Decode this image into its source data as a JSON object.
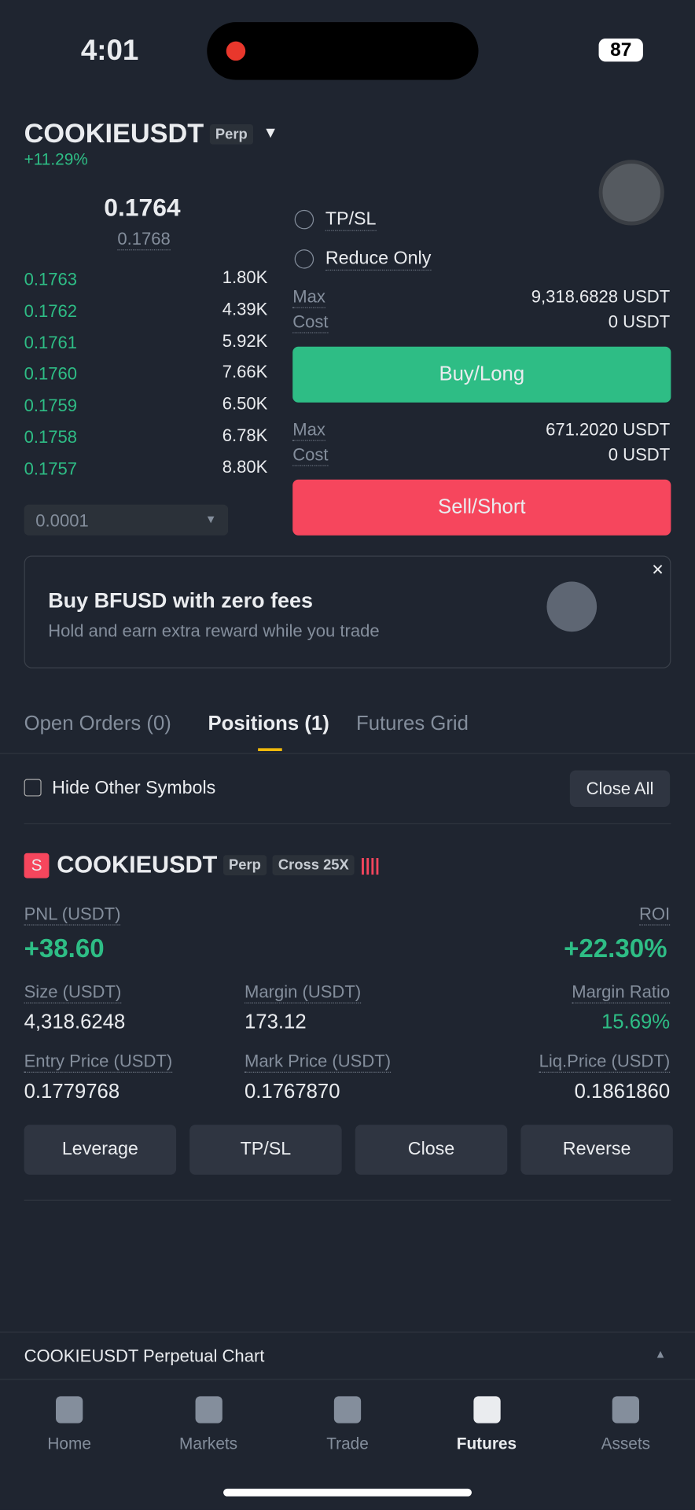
{
  "status": {
    "time": "4:01",
    "battery": "87"
  },
  "header": {
    "symbol": "COOKIEUSDT",
    "tag": "Perp",
    "change": "+11.29%"
  },
  "orderbook": {
    "last_price": "0.1764",
    "mark_price": "0.1768",
    "bids": [
      [
        "0.1763",
        "1.80K"
      ],
      [
        "0.1762",
        "4.39K"
      ],
      [
        "0.1761",
        "5.92K"
      ],
      [
        "0.1760",
        "7.66K"
      ],
      [
        "0.1759",
        "6.50K"
      ],
      [
        "0.1758",
        "6.78K"
      ],
      [
        "0.1757",
        "8.80K"
      ]
    ],
    "step": "0.0001"
  },
  "order_form": {
    "options": [
      "TP/SL",
      "Reduce Only"
    ],
    "buy": {
      "max_label": "Max",
      "max_value": "9,318.6828 USDT",
      "cost_label": "Cost",
      "cost_value": "0 USDT",
      "button": "Buy/Long"
    },
    "sell": {
      "max_label": "Max",
      "max_value": "671.2020 USDT",
      "cost_label": "Cost",
      "cost_value": "0 USDT",
      "button": "Sell/Short"
    }
  },
  "promo": {
    "title": "Buy BFUSD with zero fees",
    "subtitle": "Hold and earn extra reward while you trade"
  },
  "tabs": [
    "Open Orders (0)",
    "Positions (1)",
    "Futures Grid"
  ],
  "filter": {
    "label": "Hide Other Symbols",
    "close_all": "Close All"
  },
  "position": {
    "side": "S",
    "symbol": "COOKIEUSDT",
    "tags": [
      "Perp",
      "Cross 25X"
    ],
    "pnl_label": "PNL (USDT)",
    "pnl": "+38.60",
    "roi_label": "ROI",
    "roi": "+22.30%",
    "fields": [
      [
        "Size (USDT)",
        "4,318.6248"
      ],
      [
        "Margin (USDT)",
        "173.12"
      ],
      [
        "Margin Ratio",
        "15.69%"
      ],
      [
        "Entry Price (USDT)",
        "0.1779768"
      ],
      [
        "Mark Price (USDT)",
        "0.1767870"
      ],
      [
        "Liq.Price (USDT)",
        "0.1861860"
      ]
    ],
    "buttons": [
      "Leverage",
      "TP/SL",
      "Close",
      "Reverse"
    ]
  },
  "chart_bar": "COOKIEUSDT Perpetual  Chart",
  "nav": [
    "Home",
    "Markets",
    "Trade",
    "Futures",
    "Assets"
  ]
}
